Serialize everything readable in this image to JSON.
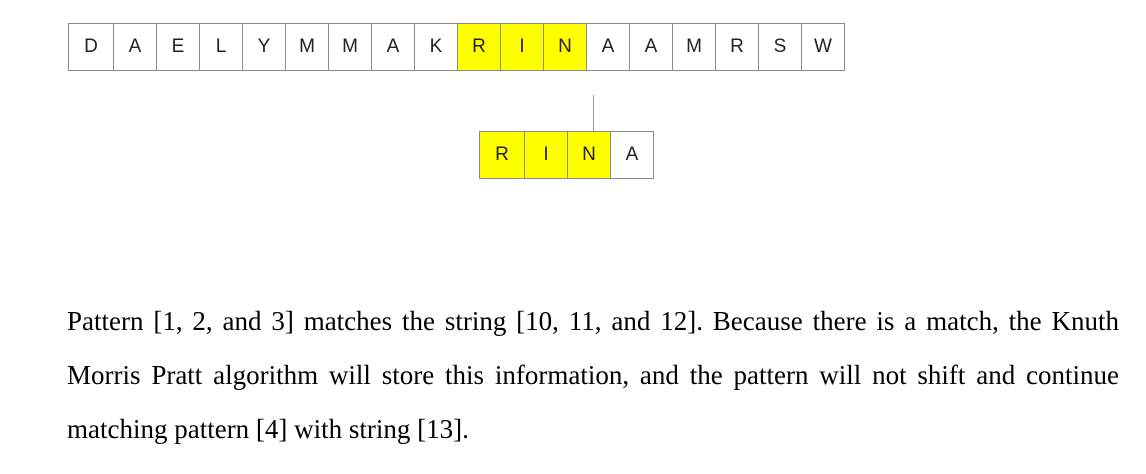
{
  "figure": {
    "text_chars": [
      "D",
      "A",
      "E",
      "L",
      "Y",
      "M",
      "M",
      "A",
      "K",
      "R",
      "I",
      "N",
      "A",
      "A",
      "M",
      "R",
      "S",
      "W"
    ],
    "text_highlighted": [
      9,
      10,
      11
    ],
    "pattern_chars": [
      "R",
      "I",
      "N",
      "A"
    ],
    "pattern_highlighted": [
      0,
      1,
      2
    ],
    "highlight_color": "#ffff00",
    "border_color": "#8a8a8a"
  },
  "caption": "Pattern [1, 2, and 3] matches the string [10, 11, and 12]. Because there is a match, the Knuth Morris Pratt algorithm will store this information, and the pattern will not shift and continue matching pattern [4] with string [13]."
}
